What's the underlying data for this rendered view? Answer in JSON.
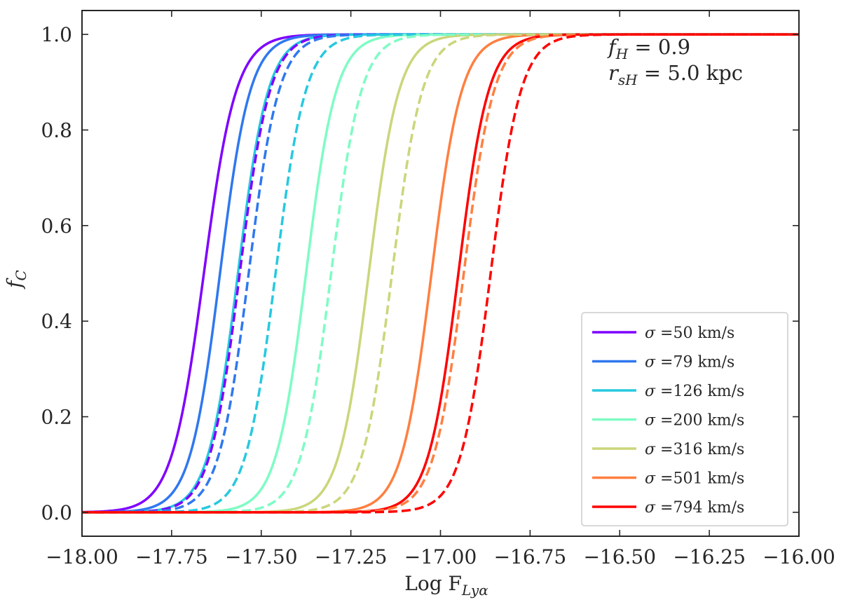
{
  "chart_data": {
    "type": "line",
    "xlabel_main": "Log F",
    "xlabel_sub": "Lyα",
    "ylabel_main": "f",
    "ylabel_sub": "C",
    "xlim": [
      -18.0,
      -16.0
    ],
    "ylim": [
      -0.05,
      1.05
    ],
    "xticks": [
      -18.0,
      -17.75,
      -17.5,
      -17.25,
      -17.0,
      -16.75,
      -16.5,
      -16.25,
      -16.0
    ],
    "xtick_labels": [
      "−18.00",
      "−17.75",
      "−17.50",
      "−17.25",
      "−17.00",
      "−16.75",
      "−16.50",
      "−16.25",
      "−16.00"
    ],
    "yticks": [
      0.0,
      0.2,
      0.4,
      0.6,
      0.8,
      1.0
    ],
    "ytick_labels": [
      "0.0",
      "0.2",
      "0.4",
      "0.6",
      "0.8",
      "1.0"
    ],
    "annotation": {
      "line1_var": "f",
      "line1_sub": "H",
      "line1_value": " = 0.9",
      "line2_var": "r",
      "line2_sub": "sH",
      "line2_value": " = 5.0 kpc"
    },
    "legend_placement": "lower-right",
    "line_styles": [
      "solid",
      "dashed"
    ],
    "series": [
      {
        "name": "σ =50 km/s",
        "legend_symbol": "σ",
        "legend_rest": " =50 km/s",
        "color": "#7f00ff",
        "solid": {
          "midpoint": -17.66,
          "width": 0.045
        },
        "dashed": {
          "midpoint": -17.56,
          "width": 0.042
        }
      },
      {
        "name": "σ =79 km/s",
        "legend_symbol": "σ",
        "legend_rest": " =79 km/s",
        "color": "#2f78ef",
        "solid": {
          "midpoint": -17.615,
          "width": 0.042
        },
        "dashed": {
          "midpoint": -17.535,
          "width": 0.042
        }
      },
      {
        "name": "σ =126 km/s",
        "legend_symbol": "σ",
        "legend_rest": " =126 km/s",
        "color": "#26c9df",
        "solid": {
          "midpoint": -17.565,
          "width": 0.042
        },
        "dashed": {
          "midpoint": -17.46,
          "width": 0.042
        }
      },
      {
        "name": "σ =200 km/s",
        "legend_symbol": "σ",
        "legend_rest": " =200 km/s",
        "color": "#7efcc4",
        "solid": {
          "midpoint": -17.375,
          "width": 0.042
        },
        "dashed": {
          "midpoint": -17.305,
          "width": 0.042
        }
      },
      {
        "name": "σ =316 km/s",
        "legend_symbol": "σ",
        "legend_rest": " =316 km/s",
        "color": "#cbd67a",
        "solid": {
          "midpoint": -17.2,
          "width": 0.042
        },
        "dashed": {
          "midpoint": -17.135,
          "width": 0.042
        }
      },
      {
        "name": "σ =501 km/s",
        "legend_symbol": "σ",
        "legend_rest": " =501 km/s",
        "color": "#ff7f40",
        "solid": {
          "midpoint": -17.025,
          "width": 0.042
        },
        "dashed": {
          "midpoint": -16.935,
          "width": 0.042
        }
      },
      {
        "name": "σ =794 km/s",
        "legend_symbol": "σ",
        "legend_rest": " =794 km/s",
        "color": "#ff0000",
        "solid": {
          "midpoint": -16.95,
          "width": 0.042
        },
        "dashed": {
          "midpoint": -16.86,
          "width": 0.042
        }
      }
    ]
  }
}
